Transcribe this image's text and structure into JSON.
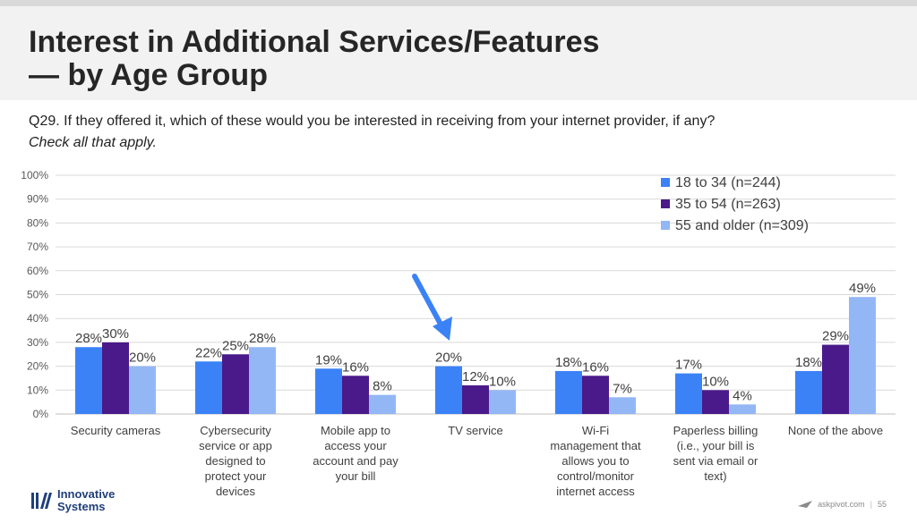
{
  "title_line1": "Interest in Additional Services/Features",
  "title_line2": "— by Age Group",
  "question": "Q29. If they offered it, which of these would you be interested in receiving from your internet provider, if any?",
  "instruction": "Check all that apply.",
  "footer": {
    "logo_line1": "Innovative",
    "logo_line2": "Systems",
    "site": "askpivot.com",
    "page": "55"
  },
  "colors": {
    "series1": "#3b82f6",
    "series2": "#4a1a8a",
    "series3": "#93b7f5",
    "arrow": "#3b82f6",
    "logo": "#1f3f7a"
  },
  "chart_data": {
    "type": "bar",
    "title": "",
    "xlabel": "",
    "ylabel": "",
    "ylim": [
      0,
      100
    ],
    "yticks": [
      "0%",
      "10%",
      "20%",
      "30%",
      "40%",
      "50%",
      "60%",
      "70%",
      "80%",
      "90%",
      "100%"
    ],
    "grid": true,
    "legend_position": "top-right",
    "categories": [
      [
        "Security cameras"
      ],
      [
        "Cybersecurity",
        "service or app",
        "designed to",
        "protect your",
        "devices"
      ],
      [
        "Mobile app to",
        "access your",
        "account and pay",
        "your bill"
      ],
      [
        "TV service"
      ],
      [
        "Wi-Fi",
        "management that",
        "allows you to",
        "control/monitor",
        "internet access"
      ],
      [
        "Paperless billing",
        "(i.e., your bill is",
        "sent via email or",
        "text)"
      ],
      [
        "None of the above"
      ]
    ],
    "series": [
      {
        "name": "18 to 34 (n=244)",
        "values": [
          28,
          22,
          19,
          20,
          18,
          17,
          18
        ],
        "labels": [
          "28%",
          "22%",
          "19%",
          "20%",
          "18%",
          "17%",
          "18%"
        ]
      },
      {
        "name": "35 to 54 (n=263)",
        "values": [
          30,
          25,
          16,
          12,
          16,
          10,
          29
        ],
        "labels": [
          "30%",
          "25%",
          "16%",
          "12%",
          "16%",
          "10%",
          "29%"
        ]
      },
      {
        "name": "55 and older (n=309)",
        "values": [
          20,
          28,
          8,
          10,
          7,
          4,
          49
        ],
        "labels": [
          "20%",
          "28%",
          "8%",
          "10%",
          "7%",
          "4%",
          "49%"
        ]
      }
    ],
    "annotations": [
      {
        "type": "arrow",
        "target_category": 3
      }
    ]
  }
}
